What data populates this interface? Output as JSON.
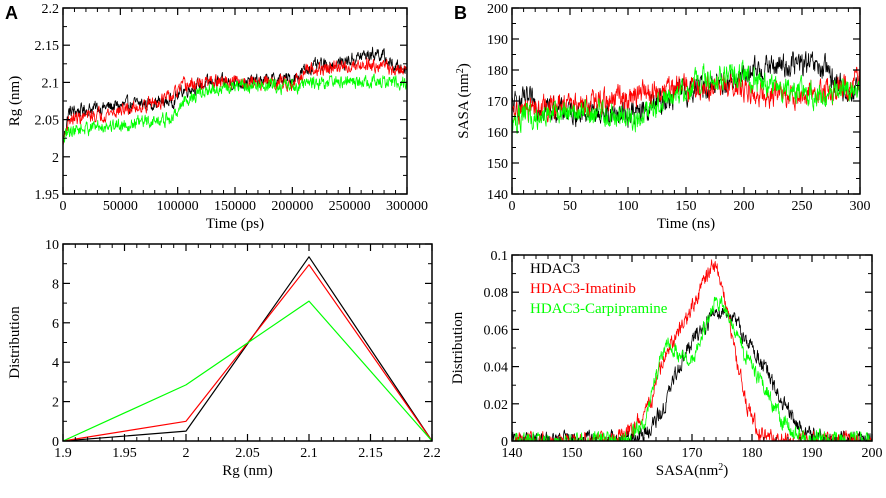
{
  "colors": {
    "hdac3": "#000000",
    "imatinib": "#ff0000",
    "carpipramine": "#00ff00"
  },
  "chart_data": [
    {
      "id": "panelA_top",
      "panel_letter": "A",
      "type": "line",
      "title": "",
      "xlabel": "Time (ps)",
      "ylabel": "Rg (nm)",
      "xlim": [
        0,
        300000
      ],
      "ylim": [
        1.95,
        2.2
      ],
      "xticks": [
        0,
        50000,
        100000,
        150000,
        200000,
        250000,
        300000
      ],
      "xtick_labels": [
        "0",
        "50000",
        "100000",
        "150000",
        "200000",
        "250000",
        "300000"
      ],
      "yticks": [
        1.95,
        2.0,
        2.05,
        2.1,
        2.15,
        2.2
      ],
      "ytick_labels": [
        "1.95",
        "2",
        "2.05",
        "2.1",
        "2.15",
        "2.2"
      ],
      "series": [
        {
          "name": "HDAC3",
          "color": "#000000",
          "noise": 0.008,
          "x": [
            0,
            5000,
            25000,
            60000,
            95000,
            105000,
            130000,
            160000,
            200000,
            215000,
            240000,
            260000,
            275000,
            290000,
            300000
          ],
          "y": [
            2.02,
            2.06,
            2.065,
            2.07,
            2.075,
            2.09,
            2.1,
            2.1,
            2.105,
            2.12,
            2.125,
            2.135,
            2.14,
            2.12,
            2.12
          ]
        },
        {
          "name": "HDAC3-Imatinib",
          "color": "#ff0000",
          "noise": 0.008,
          "x": [
            0,
            5000,
            25000,
            60000,
            95000,
            105000,
            130000,
            160000,
            200000,
            215000,
            240000,
            260000,
            275000,
            290000,
            300000
          ],
          "y": [
            2.02,
            2.05,
            2.055,
            2.065,
            2.08,
            2.095,
            2.1,
            2.1,
            2.1,
            2.115,
            2.12,
            2.125,
            2.125,
            2.115,
            2.12
          ]
        },
        {
          "name": "HDAC3-Carpipramine",
          "color": "#00ff00",
          "noise": 0.008,
          "x": [
            0,
            5000,
            25000,
            60000,
            95000,
            105000,
            130000,
            160000,
            200000,
            215000,
            240000,
            260000,
            275000,
            290000,
            300000
          ],
          "y": [
            2.02,
            2.035,
            2.04,
            2.045,
            2.05,
            2.075,
            2.09,
            2.095,
            2.095,
            2.1,
            2.1,
            2.1,
            2.1,
            2.1,
            2.1
          ]
        }
      ]
    },
    {
      "id": "panelA_bottom",
      "panel_letter": "",
      "type": "line",
      "title": "",
      "xlabel": "Rg (nm)",
      "ylabel": "Distribution",
      "xlim": [
        1.9,
        2.2
      ],
      "ylim": [
        0,
        10
      ],
      "xticks": [
        1.9,
        1.95,
        2.0,
        2.05,
        2.1,
        2.15,
        2.2
      ],
      "xtick_labels": [
        "1.9",
        "1.95",
        "2",
        "2.05",
        "2.1",
        "2.15",
        "2.2"
      ],
      "yticks": [
        0,
        2,
        4,
        6,
        8,
        10
      ],
      "ytick_labels": [
        "0",
        "2",
        "4",
        "6",
        "8",
        "10"
      ],
      "series": [
        {
          "name": "HDAC3",
          "color": "#000000",
          "x": [
            1.9,
            2.0,
            2.1,
            2.2
          ],
          "y": [
            0,
            0.5,
            9.35,
            0
          ]
        },
        {
          "name": "HDAC3-Imatinib",
          "color": "#ff0000",
          "x": [
            1.9,
            2.0,
            2.1,
            2.2
          ],
          "y": [
            0,
            1.0,
            8.95,
            0
          ]
        },
        {
          "name": "HDAC3-Carpipramine",
          "color": "#00ff00",
          "x": [
            1.9,
            2.0,
            2.1,
            2.2
          ],
          "y": [
            0,
            2.85,
            7.1,
            0
          ]
        }
      ]
    },
    {
      "id": "panelB_top",
      "panel_letter": "B",
      "type": "line",
      "title": "",
      "xlabel": "Time (ns)",
      "ylabel": "SASA (nm",
      "ylabel_sup": "2",
      "ylabel_end": ")",
      "xlim": [
        0,
        300
      ],
      "ylim": [
        140,
        200
      ],
      "xticks": [
        0,
        50,
        100,
        150,
        200,
        250,
        300
      ],
      "xtick_labels": [
        "0",
        "50",
        "100",
        "150",
        "200",
        "250",
        "300"
      ],
      "yticks": [
        140,
        150,
        160,
        170,
        180,
        190,
        200
      ],
      "ytick_labels": [
        "140",
        "150",
        "160",
        "170",
        "180",
        "190",
        "200"
      ],
      "series": [
        {
          "name": "HDAC3",
          "color": "#000000",
          "noise": 3.5,
          "x": [
            0,
            10,
            40,
            80,
            110,
            140,
            170,
            200,
            220,
            250,
            270,
            290,
            300
          ],
          "y": [
            168,
            170,
            167,
            166,
            166,
            172,
            175,
            178,
            181,
            182,
            180,
            172,
            176
          ]
        },
        {
          "name": "HDAC3-Imatinib",
          "color": "#ff0000",
          "noise": 3.5,
          "x": [
            0,
            10,
            40,
            80,
            110,
            140,
            170,
            200,
            220,
            250,
            270,
            290,
            300
          ],
          "y": [
            165,
            167,
            168,
            170,
            172,
            174,
            175,
            174,
            172,
            172,
            173,
            175,
            178
          ]
        },
        {
          "name": "HDAC3-Carpipramine",
          "color": "#00ff00",
          "noise": 3.5,
          "x": [
            0,
            10,
            40,
            80,
            110,
            140,
            170,
            200,
            220,
            250,
            270,
            290,
            300
          ],
          "y": [
            163,
            165,
            166,
            166,
            165,
            172,
            178,
            178,
            176,
            173,
            172,
            174,
            175
          ]
        }
      ]
    },
    {
      "id": "panelB_bottom",
      "panel_letter": "",
      "type": "line",
      "title": "",
      "xlabel": "SASA(nm",
      "xlabel_sup": "2",
      "xlabel_end": ")",
      "ylabel": "Distribution",
      "xlim": [
        140,
        200
      ],
      "ylim": [
        0,
        0.1
      ],
      "xticks": [
        140,
        150,
        160,
        170,
        180,
        190,
        200
      ],
      "xtick_labels": [
        "140",
        "150",
        "160",
        "170",
        "180",
        "190",
        "200"
      ],
      "yticks": [
        0,
        0.02,
        0.04,
        0.06,
        0.08,
        0.1
      ],
      "ytick_labels": [
        "0",
        "0.02",
        "0.04",
        "0.06",
        "0.08",
        "0.1"
      ],
      "legend_position": "top-left",
      "legend": [
        "HDAC3",
        "HDAC3-Imatinib",
        "HDAC3-Carpipramine"
      ],
      "series": [
        {
          "name": "HDAC3",
          "color": "#000000",
          "noise": 0.004,
          "x": [
            140,
            158,
            162,
            165,
            168,
            171,
            174,
            176,
            179,
            182,
            185,
            188,
            191,
            200
          ],
          "y": [
            0,
            0,
            0.003,
            0.015,
            0.042,
            0.058,
            0.07,
            0.07,
            0.055,
            0.04,
            0.02,
            0.007,
            0.001,
            0
          ]
        },
        {
          "name": "HDAC3-Imatinib",
          "color": "#ff0000",
          "noise": 0.004,
          "x": [
            140,
            157,
            160,
            163,
            166,
            169,
            172,
            173.5,
            175,
            177,
            179,
            181,
            184,
            200
          ],
          "y": [
            0,
            0,
            0.006,
            0.02,
            0.05,
            0.065,
            0.085,
            0.097,
            0.085,
            0.05,
            0.02,
            0.006,
            0,
            0
          ]
        },
        {
          "name": "HDAC3-Carpipramine",
          "color": "#00ff00",
          "noise": 0.004,
          "x": [
            140,
            159,
            162,
            164,
            166,
            168,
            170,
            172,
            174,
            176,
            179,
            182,
            185,
            188,
            200
          ],
          "y": [
            0,
            0,
            0.01,
            0.035,
            0.055,
            0.045,
            0.043,
            0.06,
            0.075,
            0.07,
            0.045,
            0.03,
            0.01,
            0.002,
            0
          ]
        }
      ]
    }
  ]
}
